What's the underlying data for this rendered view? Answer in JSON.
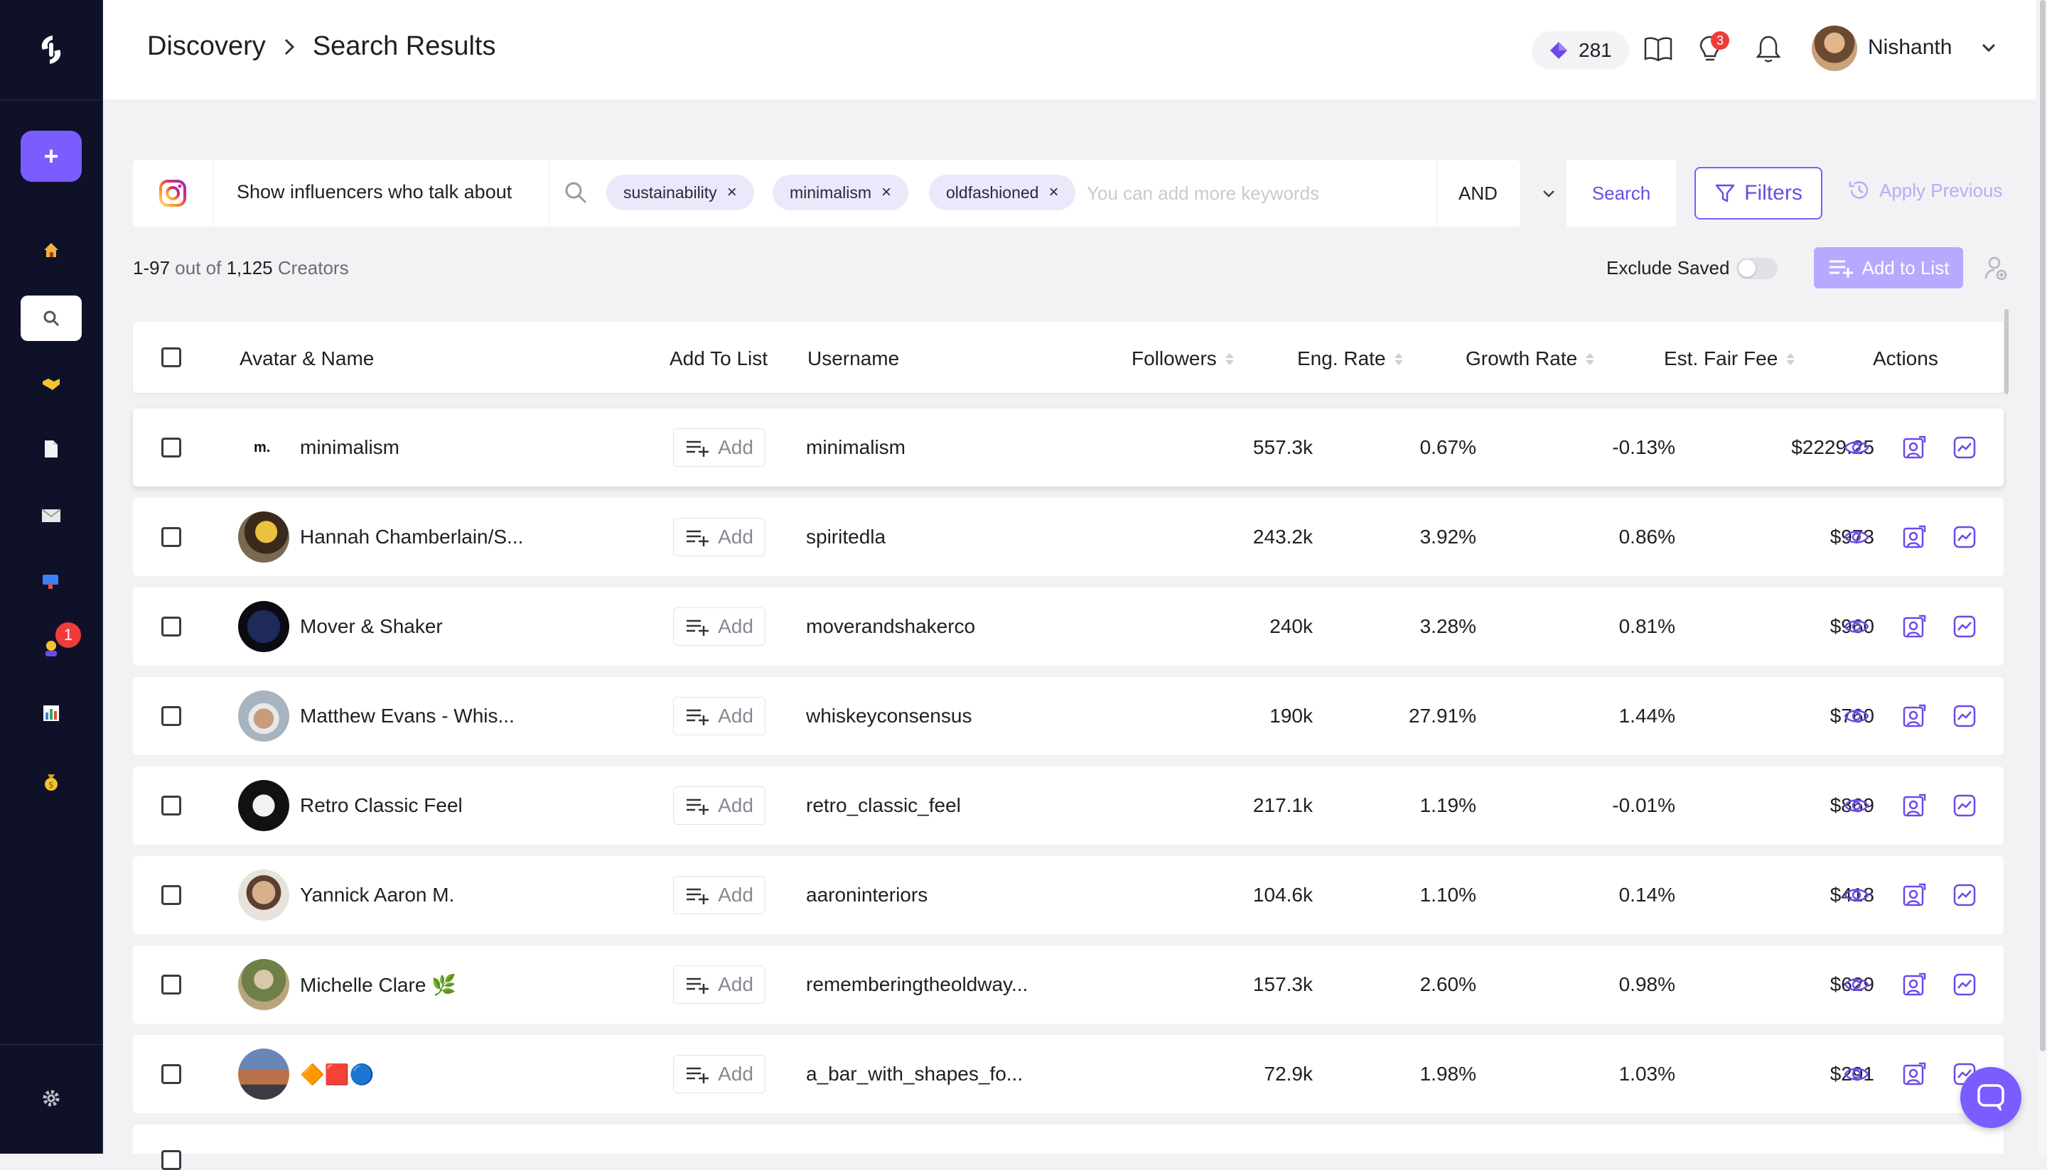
{
  "header": {
    "breadcrumb": [
      "Discovery",
      "Search Results"
    ],
    "gems": "281",
    "tips_badge": "3",
    "user_name": "Nishanth"
  },
  "sidebar": {
    "add_label": "+",
    "badge": "1",
    "items": [
      "home-icon",
      "search-icon",
      "handshake-icon",
      "document-icon",
      "mail-icon",
      "campaign-icon",
      "influencer-icon",
      "analytics-icon",
      "money-bag-icon"
    ]
  },
  "search": {
    "prompt": "Show influencers who talk about",
    "keywords": [
      "sustainability",
      "minimalism",
      "oldfashioned"
    ],
    "placeholder": "You can add more keywords",
    "operator": "AND",
    "search_label": "Search",
    "filters_label": "Filters",
    "apply_previous_label": "Apply Previous"
  },
  "toolbar": {
    "range": "1-97",
    "out_of": "out of",
    "total": "1,125",
    "unit": "Creators",
    "exclude_saved_label": "Exclude Saved",
    "add_to_list_label": "Add to List"
  },
  "table": {
    "columns": {
      "avatar_name": "Avatar & Name",
      "add_to_list": "Add To List",
      "username": "Username",
      "followers": "Followers",
      "eng_rate": "Eng. Rate",
      "growth_rate": "Growth Rate",
      "fair_fee": "Est. Fair Fee",
      "actions": "Actions"
    },
    "add_label": "Add",
    "rows": [
      {
        "name": "minimalism",
        "username": "minimalism",
        "followers": "557.3k",
        "eng": "0.67%",
        "growth": "-0.13%",
        "fee": "$2229.25"
      },
      {
        "name": "Hannah Chamberlain/S...",
        "username": "spiritedla",
        "followers": "243.2k",
        "eng": "3.92%",
        "growth": "0.86%",
        "fee": "$973"
      },
      {
        "name": "Mover & Shaker",
        "username": "moverandshakerco",
        "followers": "240k",
        "eng": "3.28%",
        "growth": "0.81%",
        "fee": "$960"
      },
      {
        "name": "Matthew Evans - Whis...",
        "username": "whiskeyconsensus",
        "followers": "190k",
        "eng": "27.91%",
        "growth": "1.44%",
        "fee": "$760"
      },
      {
        "name": "Retro Classic Feel",
        "username": "retro_classic_feel",
        "followers": "217.1k",
        "eng": "1.19%",
        "growth": "-0.01%",
        "fee": "$869"
      },
      {
        "name": "Yannick Aaron M.",
        "username": "aaroninteriors",
        "followers": "104.6k",
        "eng": "1.10%",
        "growth": "0.14%",
        "fee": "$418"
      },
      {
        "name": "Michelle Clare 🌿",
        "username": "rememberingtheoldway...",
        "followers": "157.3k",
        "eng": "2.60%",
        "growth": "0.98%",
        "fee": "$629"
      },
      {
        "name": "🔶🟥🔵",
        "username": "a_bar_with_shapes_fo...",
        "followers": "72.9k",
        "eng": "1.98%",
        "growth": "1.03%",
        "fee": "$291"
      }
    ]
  },
  "colors": {
    "accent": "#7b5cff",
    "sidebar_bg": "#0f1129",
    "badge_red": "#ef3b3b"
  }
}
